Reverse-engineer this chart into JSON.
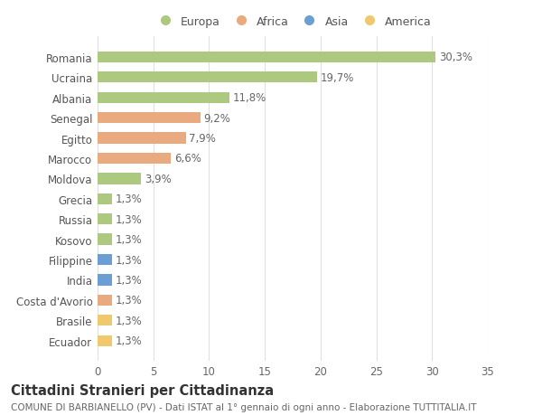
{
  "categories": [
    "Romania",
    "Ucraina",
    "Albania",
    "Senegal",
    "Egitto",
    "Marocco",
    "Moldova",
    "Grecia",
    "Russia",
    "Kosovo",
    "Filippine",
    "India",
    "Costa d'Avorio",
    "Brasile",
    "Ecuador"
  ],
  "values": [
    30.3,
    19.7,
    11.8,
    9.2,
    7.9,
    6.6,
    3.9,
    1.3,
    1.3,
    1.3,
    1.3,
    1.3,
    1.3,
    1.3,
    1.3
  ],
  "labels": [
    "30,3%",
    "19,7%",
    "11,8%",
    "9,2%",
    "7,9%",
    "6,6%",
    "3,9%",
    "1,3%",
    "1,3%",
    "1,3%",
    "1,3%",
    "1,3%",
    "1,3%",
    "1,3%",
    "1,3%"
  ],
  "colors": [
    "#adc97f",
    "#adc97f",
    "#adc97f",
    "#e8aa7e",
    "#e8aa7e",
    "#e8aa7e",
    "#adc97f",
    "#adc97f",
    "#adc97f",
    "#adc97f",
    "#6b9fd4",
    "#6b9fd4",
    "#e8aa7e",
    "#f0c96e",
    "#f0c96e"
  ],
  "legend_labels": [
    "Europa",
    "Africa",
    "Asia",
    "America"
  ],
  "legend_colors": [
    "#adc97f",
    "#e8aa7e",
    "#6b9fd4",
    "#f0c96e"
  ],
  "title": "Cittadini Stranieri per Cittadinanza",
  "subtitle": "COMUNE DI BARBIANELLO (PV) - Dati ISTAT al 1° gennaio di ogni anno - Elaborazione TUTTITALIA.IT",
  "xlim": [
    0,
    35
  ],
  "xticks": [
    0,
    5,
    10,
    15,
    20,
    25,
    30,
    35
  ],
  "background_color": "#ffffff",
  "grid_color": "#e0e0e0",
  "bar_height": 0.55,
  "label_fontsize": 8.5,
  "tick_fontsize": 8.5,
  "title_fontsize": 10.5,
  "subtitle_fontsize": 7.5
}
